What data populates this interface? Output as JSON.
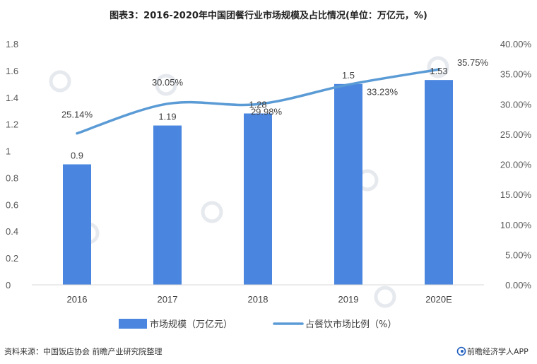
{
  "header": {
    "title": "图表3：2016-2020年中国团餐行业市场规模及占比情况(单位：万亿元，%)"
  },
  "footer": {
    "source": "资料来源：中国饭店协会 前瞻产业研究院整理",
    "brand": "前瞻经济学人APP"
  },
  "colors": {
    "bar": "#4a86e0",
    "line": "#5b9bd5",
    "brand": "#1f5fbf"
  },
  "chart_data": {
    "type": "bar",
    "title": "图表3：2016-2020年中国团餐行业市场规模及占比情况(单位：万亿元，%)",
    "categories": [
      "2016",
      "2017",
      "2018",
      "2019",
      "2020E"
    ],
    "series": [
      {
        "name": "市场规模（万亿元）",
        "type": "bar",
        "axis": "left",
        "values": [
          0.9,
          1.19,
          1.28,
          1.5,
          1.53
        ],
        "labels": [
          "0.9",
          "1.19",
          "1.28",
          "1.5",
          "1.53"
        ]
      },
      {
        "name": "占餐饮市场比例（%）",
        "type": "line",
        "axis": "right",
        "values": [
          25.14,
          30.05,
          29.98,
          33.23,
          35.75
        ],
        "labels": [
          "25.14%",
          "30.05%",
          "29.98%",
          "33.23%",
          "35.75%"
        ]
      }
    ],
    "y_left": {
      "min": 0,
      "max": 1.8,
      "ticks": [
        "0",
        "0.2",
        "0.4",
        "0.6",
        "0.8",
        "1",
        "1.2",
        "1.4",
        "1.6",
        "1.8"
      ]
    },
    "y_right": {
      "min": 0,
      "max": 40,
      "ticks": [
        "0.00%",
        "5.00%",
        "10.00%",
        "15.00%",
        "20.00%",
        "25.00%",
        "30.00%",
        "35.00%",
        "40.00%"
      ]
    },
    "grid": false,
    "legend": "bottom"
  }
}
